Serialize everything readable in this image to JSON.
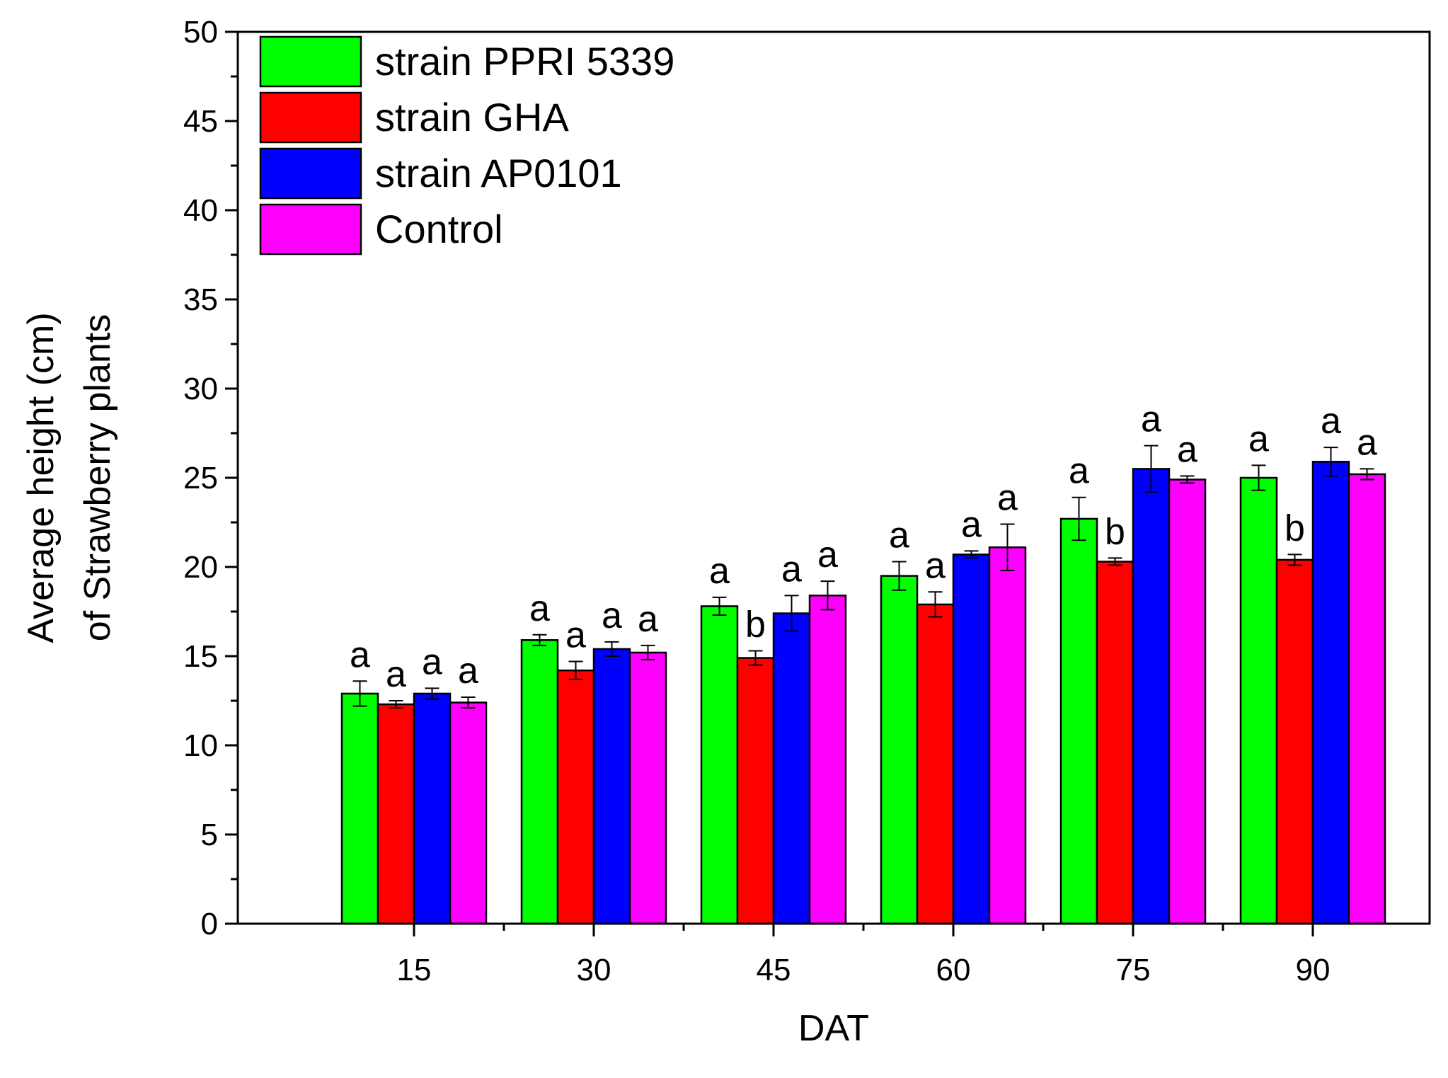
{
  "chart_data": {
    "type": "bar",
    "title": "",
    "xlabel": "DAT",
    "ylabel_line1": "Average height (cm)",
    "ylabel_line2": "of Strawberry plants",
    "ylim": [
      0,
      50
    ],
    "ytick_step": 5,
    "yticks": [
      "0",
      "5",
      "10",
      "15",
      "20",
      "25",
      "30",
      "35",
      "40",
      "45",
      "50"
    ],
    "categories": [
      "15",
      "30",
      "45",
      "60",
      "75",
      "90"
    ],
    "legend_position": "top-left",
    "series": [
      {
        "name": "strain PPRI 5339",
        "color": "#00ff00",
        "values": [
          12.9,
          15.9,
          17.8,
          19.5,
          22.7,
          25.0
        ],
        "errors": [
          0.7,
          0.3,
          0.5,
          0.8,
          1.2,
          0.7
        ],
        "labels": [
          "a",
          "a",
          "a",
          "a",
          "a",
          "a"
        ]
      },
      {
        "name": "strain GHA",
        "color": "#ff0000",
        "values": [
          12.3,
          14.2,
          14.9,
          17.9,
          20.3,
          20.4
        ],
        "errors": [
          0.2,
          0.5,
          0.4,
          0.7,
          0.2,
          0.3
        ],
        "labels": [
          "a",
          "a",
          "b",
          "a",
          "b",
          "b"
        ]
      },
      {
        "name": "strain AP0101",
        "color": "#0000ff",
        "values": [
          12.9,
          15.4,
          17.4,
          20.7,
          25.5,
          25.9
        ],
        "errors": [
          0.3,
          0.4,
          1.0,
          0.2,
          1.3,
          0.8
        ],
        "labels": [
          "a",
          "a",
          "a",
          "a",
          "a",
          "a"
        ]
      },
      {
        "name": "Control",
        "color": "#ff00ff",
        "values": [
          12.4,
          15.2,
          18.4,
          21.1,
          24.9,
          25.2
        ],
        "errors": [
          0.3,
          0.4,
          0.8,
          1.3,
          0.2,
          0.3
        ],
        "labels": [
          "a",
          "a",
          "a",
          "a",
          "a",
          "a"
        ]
      }
    ]
  }
}
